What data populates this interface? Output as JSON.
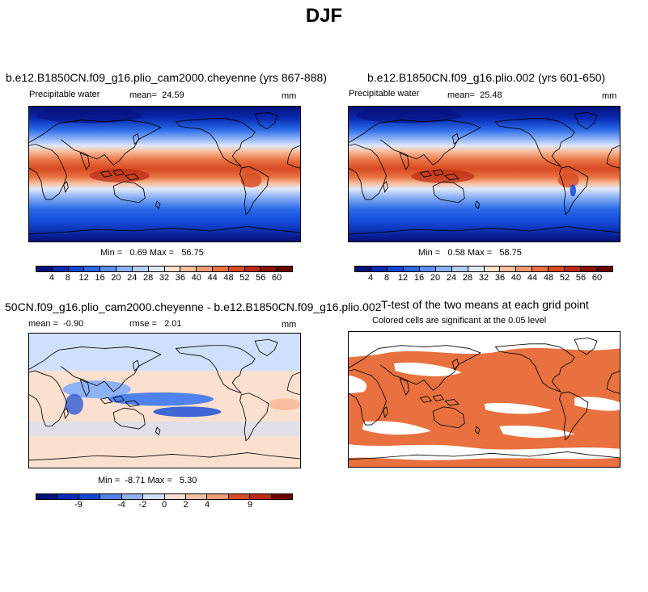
{
  "title": "DJF",
  "panel_a": {
    "title": "b.e12.B1850CN.f09_g16.plio_cam2000.cheyenne (yrs 867-888)",
    "variable": "Precipitable water",
    "mean_label": "mean=",
    "mean_value": "24.59",
    "units": "mm",
    "min_label": "Min =",
    "min_value": "0.69",
    "max_label": "Max =",
    "max_value": "56.75"
  },
  "panel_b": {
    "title": "b.e12.B1850CN.f09_g16.plio.002 (yrs 601-650)",
    "variable": "Precipitable water",
    "mean_label": "mean=",
    "mean_value": "25.48",
    "units": "mm",
    "min_label": "Min =",
    "min_value": "0.58",
    "max_label": "Max =",
    "max_value": "58.75"
  },
  "panel_c": {
    "title": "50CN.f09_g16.plio_cam2000.cheyenne - b.e12.B1850CN.f09_g16.plio.002",
    "mean_label": "mean =",
    "mean_value": "-0.90",
    "rmse_label": "rmse =",
    "rmse_value": "2.01",
    "units": "mm",
    "min_label": "Min =",
    "min_value": "-8.71",
    "max_label": "Max =",
    "max_value": "5.30"
  },
  "panel_d": {
    "title": "T-test of the two means at each grid point",
    "subtitle": "Colored cells are significant at the 0.05 level",
    "significant_color": "#e8713f"
  },
  "colorbar_abs": {
    "labels": [
      "4",
      "8",
      "12",
      "16",
      "20",
      "24",
      "28",
      "32",
      "36",
      "40",
      "44",
      "48",
      "52",
      "56",
      "60"
    ],
    "colors": [
      "#06107a",
      "#0a2bb3",
      "#1247d6",
      "#2a6ae8",
      "#5b8ef0",
      "#8db2f5",
      "#b8d0f8",
      "#dfe9fb",
      "#fce3d4",
      "#f8c0a1",
      "#f29c74",
      "#e8713f",
      "#d84b23",
      "#bb2a12",
      "#8e1208",
      "#6b0503"
    ]
  },
  "colorbar_diff": {
    "labels": [
      "-9",
      "-4",
      "-2",
      "0",
      "2",
      "4",
      "9"
    ],
    "colors": [
      "#06107a",
      "#0a2bb3",
      "#1247d6",
      "#4f82ec",
      "#8db2f5",
      "#cfe0fa",
      "#fbe0cf",
      "#f8c0a1",
      "#f29c74",
      "#d84b23",
      "#bb2a12",
      "#6b0503"
    ]
  }
}
